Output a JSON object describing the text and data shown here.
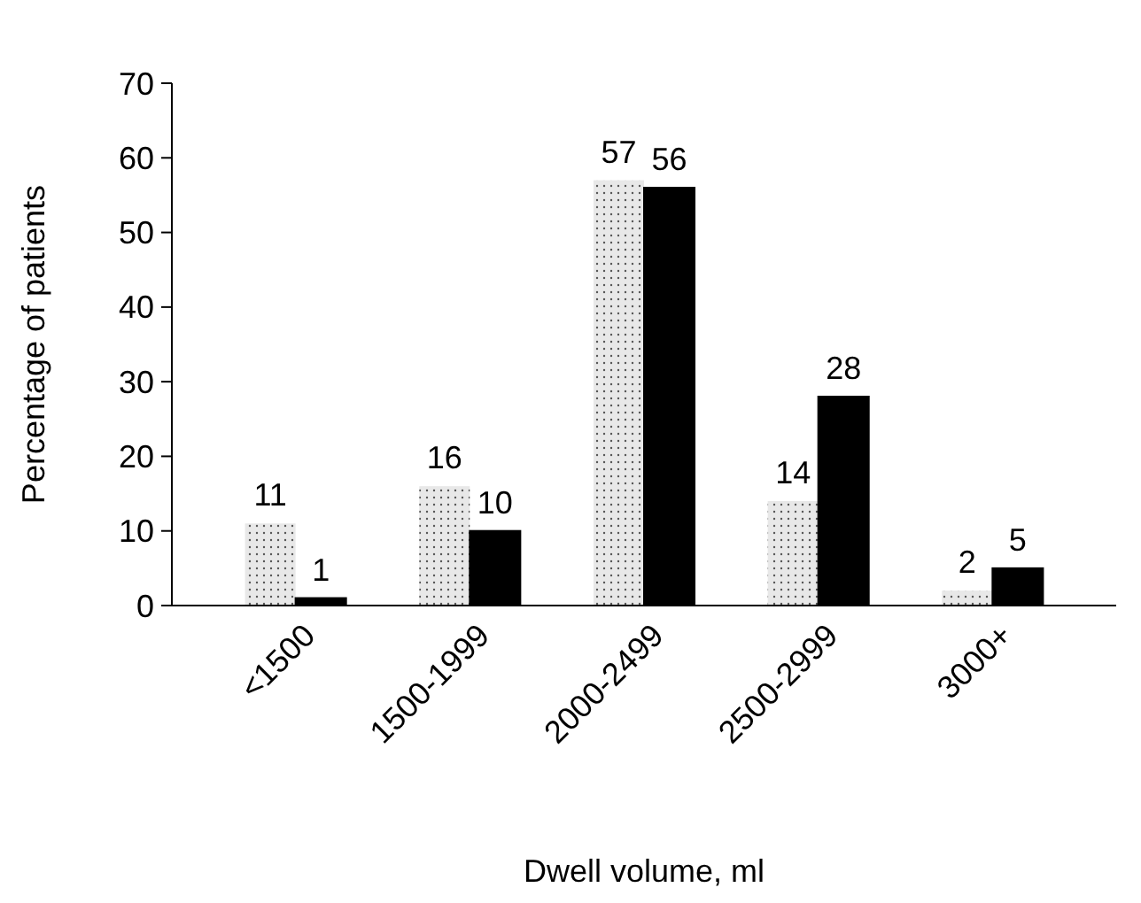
{
  "chart_data": {
    "type": "bar",
    "xlabel": "Dwell volume, ml",
    "ylabel": "Percentage of patients",
    "categories": [
      "<1500",
      "1500-1999",
      "2000-2499",
      "2500-2999",
      "3000+"
    ],
    "series": [
      {
        "color": "#e8e8e8",
        "values": [
          11,
          16,
          57,
          14,
          2
        ]
      },
      {
        "color": "#000000",
        "values": [
          1,
          10,
          56,
          28,
          5
        ]
      }
    ],
    "ylim": [
      0,
      70
    ],
    "yticks": [
      0,
      10,
      20,
      30,
      40,
      50,
      60,
      70
    ],
    "grid": false,
    "data_labels": true
  }
}
